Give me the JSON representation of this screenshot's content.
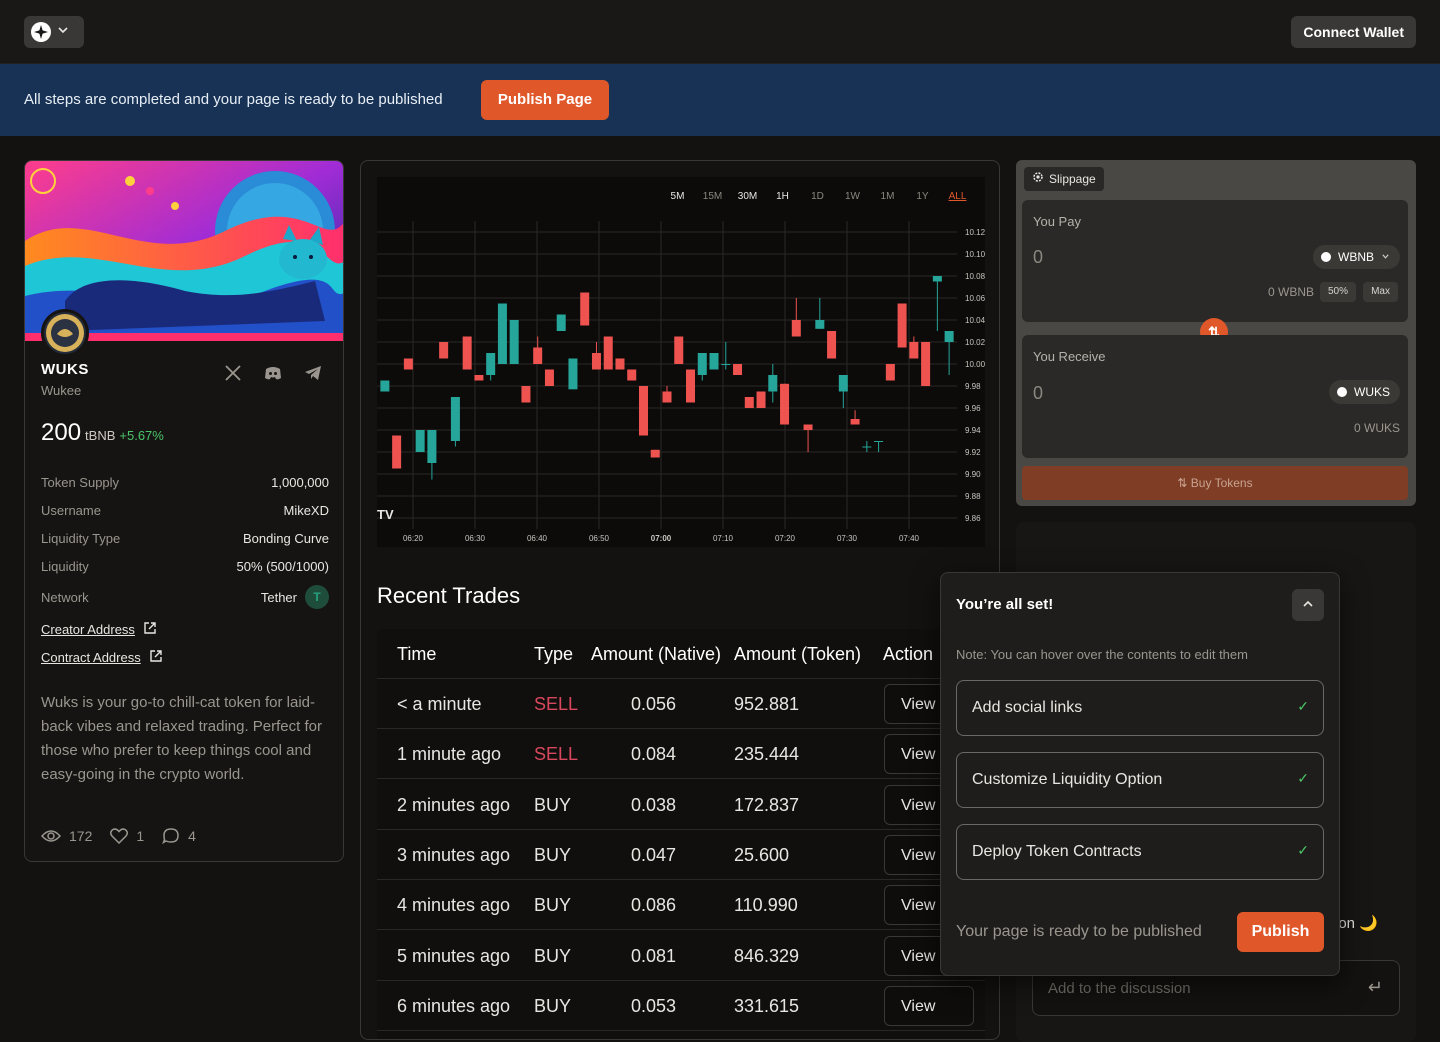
{
  "topbar": {
    "logo_icon": "compass-icon",
    "connect_label": "Connect Wallet"
  },
  "banner": {
    "message": "All steps are completed and your page is ready to be published",
    "publish_label": "Publish Page"
  },
  "token": {
    "symbol": "WUKS",
    "name": "Wukee",
    "price": "200",
    "price_unit": "tBNB",
    "change": "+5.67%",
    "details": [
      {
        "k": "Token Supply",
        "v": "1,000,000"
      },
      {
        "k": "Username",
        "v": "MikeXD"
      },
      {
        "k": "Liquidity Type",
        "v": "Bonding Curve"
      },
      {
        "k": "Liquidity",
        "v": "50% (500/1000)"
      }
    ],
    "network_label": "Network",
    "network_value": "Tether",
    "creator_address": "Creator Address",
    "contract_address": "Contract Address",
    "description": "Wuks is your go-to chill-cat token for laid-back vibes and relaxed trading. Perfect for those who prefer to keep things cool and easy-going in the crypto world.",
    "views": "172",
    "likes": "1",
    "comments": "4"
  },
  "chart_data": {
    "type": "candlestick",
    "timeframes": [
      "5M",
      "15M",
      "30M",
      "1H",
      "1D",
      "1W",
      "1M",
      "1Y",
      "ALL"
    ],
    "active_timeframe": "ALL",
    "x_ticks": [
      "06:20",
      "06:30",
      "06:40",
      "06:50",
      "07:00",
      "07:10",
      "07:20",
      "07:30",
      "07:40"
    ],
    "y_ticks": [
      "10.12",
      "10.10",
      "10.08",
      "10.06",
      "10.04",
      "10.02",
      "10.00",
      "9.98",
      "9.96",
      "9.94",
      "9.92",
      "9.90",
      "9.88",
      "9.86"
    ],
    "ylim": [
      9.85,
      10.13
    ],
    "up_color": "#26a69a",
    "down_color": "#ef5350",
    "candles": [
      {
        "o": 9.975,
        "h": 9.985,
        "l": 9.975,
        "c": 9.985
      },
      {
        "o": 9.935,
        "h": 9.935,
        "l": 9.905,
        "c": 9.905
      },
      {
        "o": 10.005,
        "h": 10.005,
        "l": 9.995,
        "c": 9.995
      },
      {
        "o": 9.92,
        "h": 9.94,
        "l": 9.92,
        "c": 9.94
      },
      {
        "o": 9.91,
        "h": 9.94,
        "l": 9.895,
        "c": 9.94
      },
      {
        "o": 10.02,
        "h": 10.02,
        "l": 10.005,
        "c": 10.005
      },
      {
        "o": 9.93,
        "h": 9.97,
        "l": 9.925,
        "c": 9.97
      },
      {
        "o": 10.025,
        "h": 10.025,
        "l": 9.995,
        "c": 9.995
      },
      {
        "o": 9.99,
        "h": 9.99,
        "l": 9.985,
        "c": 9.985
      },
      {
        "o": 9.99,
        "h": 10.01,
        "l": 9.985,
        "c": 10.01
      },
      {
        "o": 10.0,
        "h": 10.055,
        "l": 10.0,
        "c": 10.055
      },
      {
        "o": 10.0,
        "h": 10.04,
        "l": 10.0,
        "c": 10.04
      },
      {
        "o": 9.98,
        "h": 9.98,
        "l": 9.965,
        "c": 9.965
      },
      {
        "o": 10.015,
        "h": 10.025,
        "l": 10.0,
        "c": 10.0
      },
      {
        "o": 9.995,
        "h": 9.995,
        "l": 9.98,
        "c": 9.98
      },
      {
        "o": 10.03,
        "h": 10.045,
        "l": 10.03,
        "c": 10.045
      },
      {
        "o": 9.977,
        "h": 10.005,
        "l": 9.977,
        "c": 10.005
      },
      {
        "o": 10.065,
        "h": 10.065,
        "l": 10.035,
        "c": 10.035
      },
      {
        "o": 10.01,
        "h": 10.02,
        "l": 9.995,
        "c": 9.995
      },
      {
        "o": 10.025,
        "h": 10.025,
        "l": 9.995,
        "c": 9.995
      },
      {
        "o": 10.005,
        "h": 10.005,
        "l": 9.995,
        "c": 9.995
      },
      {
        "o": 9.995,
        "h": 9.995,
        "l": 9.985,
        "c": 9.985
      },
      {
        "o": 9.98,
        "h": 9.98,
        "l": 9.935,
        "c": 9.935
      },
      {
        "o": 9.922,
        "h": 9.922,
        "l": 9.915,
        "c": 9.915
      },
      {
        "o": 9.975,
        "h": 9.98,
        "l": 9.965,
        "c": 9.965
      },
      {
        "o": 10.025,
        "h": 10.025,
        "l": 10.0,
        "c": 10.0
      },
      {
        "o": 9.995,
        "h": 9.995,
        "l": 9.965,
        "c": 9.965
      },
      {
        "o": 9.99,
        "h": 10.01,
        "l": 9.985,
        "c": 10.01
      },
      {
        "o": 9.995,
        "h": 10.01,
        "l": 9.995,
        "c": 10.01
      },
      {
        "o": 10.0,
        "h": 10.02,
        "l": 9.995,
        "c": 10.0
      },
      {
        "o": 10.0,
        "h": 10.0,
        "l": 9.99,
        "c": 9.99
      },
      {
        "o": 9.97,
        "h": 9.97,
        "l": 9.96,
        "c": 9.96
      },
      {
        "o": 9.975,
        "h": 9.975,
        "l": 9.96,
        "c": 9.96
      },
      {
        "o": 9.975,
        "h": 10.0,
        "l": 9.965,
        "c": 9.99
      },
      {
        "o": 9.982,
        "h": 9.982,
        "l": 9.945,
        "c": 9.945
      },
      {
        "o": 10.04,
        "h": 10.06,
        "l": 10.025,
        "c": 10.025
      },
      {
        "o": 9.945,
        "h": 9.945,
        "l": 9.92,
        "c": 9.94
      },
      {
        "o": 10.032,
        "h": 10.06,
        "l": 10.032,
        "c": 10.04
      },
      {
        "o": 10.03,
        "h": 10.03,
        "l": 10.005,
        "c": 10.005
      },
      {
        "o": 9.975,
        "h": 9.99,
        "l": 9.96,
        "c": 9.99
      },
      {
        "o": 9.95,
        "h": 9.958,
        "l": 9.945,
        "c": 9.945
      },
      {
        "o": 9.925,
        "h": 9.93,
        "l": 9.92,
        "c": 9.925
      },
      {
        "o": 9.93,
        "h": 9.93,
        "l": 9.92,
        "c": 9.93
      },
      {
        "o": 10.0,
        "h": 10.0,
        "l": 9.985,
        "c": 9.985
      },
      {
        "o": 10.055,
        "h": 10.055,
        "l": 10.015,
        "c": 10.015
      },
      {
        "o": 10.02,
        "h": 10.025,
        "l": 10.005,
        "c": 10.005
      },
      {
        "o": 10.02,
        "h": 10.02,
        "l": 9.98,
        "c": 9.98
      },
      {
        "o": 10.075,
        "h": 10.08,
        "l": 10.03,
        "c": 10.08
      },
      {
        "o": 10.02,
        "h": 10.03,
        "l": 9.99,
        "c": 10.03
      }
    ]
  },
  "trades": {
    "title": "Recent Trades",
    "headers": [
      "Time",
      "Type",
      "Amount (Native)",
      "Amount (Token)",
      "Action"
    ],
    "rows": [
      {
        "time": "< a minute",
        "type": "SELL",
        "native": "0.056",
        "token": "952.881",
        "action": "View"
      },
      {
        "time": "1 minute ago",
        "type": "SELL",
        "native": "0.084",
        "token": "235.444",
        "action": "View"
      },
      {
        "time": "2 minutes ago",
        "type": "BUY",
        "native": "0.038",
        "token": "172.837",
        "action": "View"
      },
      {
        "time": "3 minutes ago",
        "type": "BUY",
        "native": "0.047",
        "token": "25.600",
        "action": "View"
      },
      {
        "time": "4 minutes ago",
        "type": "BUY",
        "native": "0.086",
        "token": "110.990",
        "action": "View"
      },
      {
        "time": "5 minutes ago",
        "type": "BUY",
        "native": "0.081",
        "token": "846.329",
        "action": "View"
      },
      {
        "time": "6 minutes ago",
        "type": "BUY",
        "native": "0.053",
        "token": "331.615",
        "action": "View"
      }
    ]
  },
  "swap": {
    "slippage_label": "Slippage",
    "pay_label": "You Pay",
    "pay_amount": "0",
    "pay_token": "WBNB",
    "pay_balance": "0 WBNB",
    "half_label": "50%",
    "max_label": "Max",
    "receive_label": "You Receive",
    "receive_amount": "0",
    "receive_token": "WUKS",
    "receive_balance": "0 WUKS",
    "buy_label": "Buy Tokens"
  },
  "discussion": {
    "partial_text": "oon 🌙",
    "placeholder": "Add to the discussion"
  },
  "checklist": {
    "title": "You’re all set!",
    "note": "Note: You can hover over the contents to edit them",
    "steps": [
      "Add social links",
      "Customize Liquidity Option",
      "Deploy Token Contracts"
    ],
    "ready_text": "Your page is ready to be published",
    "publish_label": "Publish"
  }
}
